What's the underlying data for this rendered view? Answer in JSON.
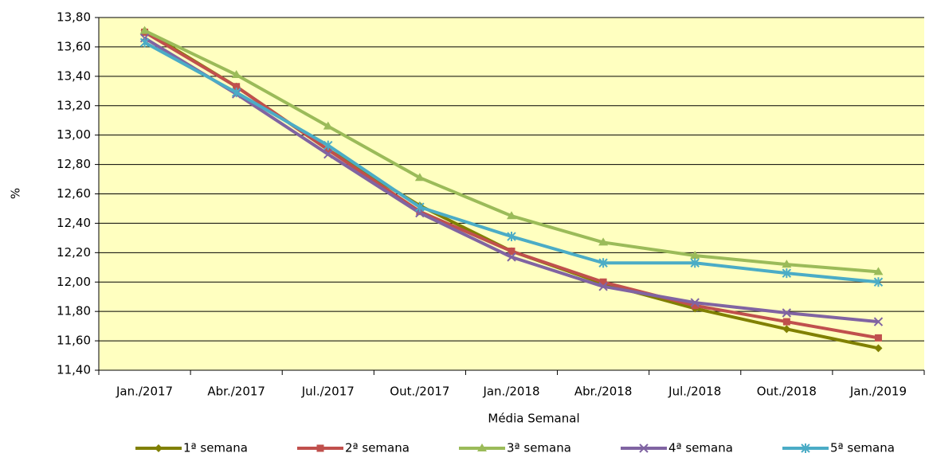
{
  "chart_data": {
    "type": "line",
    "xlabel": "Média Semanal",
    "ylabel": "%",
    "categories": [
      "Jan./2017",
      "Abr./2017",
      "Jul./2017",
      "Out./2017",
      "Jan./2018",
      "Abr./2018",
      "Jul./2018",
      "Out./2018",
      "Jan./2019"
    ],
    "series": [
      {
        "name": "1ª semana",
        "color": "#808000",
        "marker": "diamond",
        "values": [
          13.71,
          13.33,
          12.9,
          12.52,
          12.21,
          11.99,
          11.82,
          11.68,
          11.55
        ]
      },
      {
        "name": "2ª semana",
        "color": "#c0504d",
        "marker": "square",
        "values": [
          13.7,
          13.33,
          12.9,
          12.48,
          12.21,
          12.0,
          11.84,
          11.73,
          11.62
        ]
      },
      {
        "name": "3ª semana",
        "color": "#9bbb59",
        "marker": "triangle",
        "values": [
          13.71,
          13.41,
          13.06,
          12.71,
          12.45,
          12.27,
          12.18,
          12.12,
          12.07
        ]
      },
      {
        "name": "4ª semana",
        "color": "#8064a2",
        "marker": "x",
        "values": [
          13.66,
          13.28,
          12.87,
          12.47,
          12.17,
          11.97,
          11.86,
          11.79,
          11.73
        ]
      },
      {
        "name": "5ª semana",
        "color": "#4bacc6",
        "marker": "star",
        "values": [
          13.63,
          13.29,
          12.93,
          12.51,
          12.31,
          12.13,
          12.13,
          12.06,
          12.0
        ]
      }
    ],
    "ylim": [
      11.4,
      13.8
    ],
    "yticks": [
      {
        "value": 11.4,
        "label": "11,40"
      },
      {
        "value": 11.6,
        "label": "11,60"
      },
      {
        "value": 11.8,
        "label": "11,80"
      },
      {
        "value": 12.0,
        "label": "12,00"
      },
      {
        "value": 12.2,
        "label": "12,20"
      },
      {
        "value": 12.4,
        "label": "12,40"
      },
      {
        "value": 12.6,
        "label": "12,60"
      },
      {
        "value": 12.8,
        "label": "12,80"
      },
      {
        "value": 13.0,
        "label": "13,00"
      },
      {
        "value": 13.2,
        "label": "13,20"
      },
      {
        "value": 13.4,
        "label": "13,40"
      },
      {
        "value": 13.6,
        "label": "13,60"
      },
      {
        "value": 13.8,
        "label": "13,80"
      }
    ],
    "grid": true,
    "plot_background": "#ffffc0",
    "legend": "bottom"
  }
}
